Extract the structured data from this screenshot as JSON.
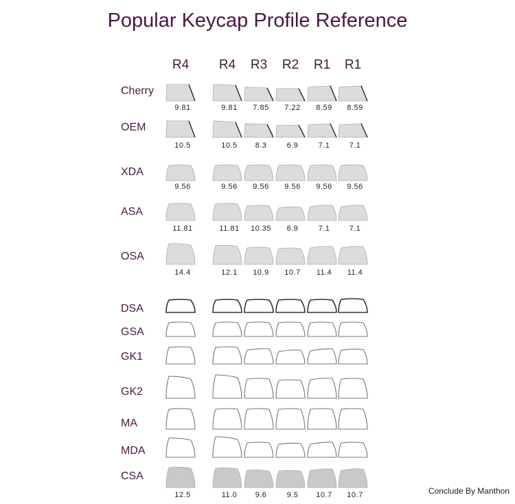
{
  "title": "Popular Keycap Profile Reference",
  "columns": [
    "R4",
    "R4",
    "R3",
    "R2",
    "R1",
    "R1"
  ],
  "profiles": [
    {
      "name": "Cherry",
      "values": [
        "9.81",
        "9.81",
        "7.85",
        "7.22",
        "8.59",
        "8.59"
      ]
    },
    {
      "name": "OEM",
      "values": [
        "10.5",
        "10.5",
        "8.3",
        "6.9",
        "7.1",
        "7.1"
      ]
    },
    {
      "name": "XDA",
      "values": [
        "9.56",
        "9.56",
        "9.56",
        "9.56",
        "9.56",
        "9.56"
      ]
    },
    {
      "name": "ASA",
      "values": [
        "11.81",
        "11.81",
        "10.35",
        "6.9",
        "7.1",
        "7.1"
      ]
    },
    {
      "name": "OSA",
      "values": [
        "14.4",
        "12.1",
        "10.9",
        "10.7",
        "11.4",
        "11.4"
      ]
    },
    {
      "name": "DSA",
      "values": []
    },
    {
      "name": "GSA",
      "values": []
    },
    {
      "name": "GK1",
      "values": []
    },
    {
      "name": "GK2",
      "values": []
    },
    {
      "name": "MA",
      "values": []
    },
    {
      "name": "MDA",
      "values": []
    },
    {
      "name": "CSA",
      "values": [
        "12.5",
        "11.0",
        "9.6",
        "9.5",
        "10.7",
        "10.7"
      ]
    }
  ],
  "credit": "Conclude By Manthon",
  "colors": {
    "title": "#4a1742",
    "cap_fill": "#dcdcdc",
    "outline": "#555555"
  }
}
